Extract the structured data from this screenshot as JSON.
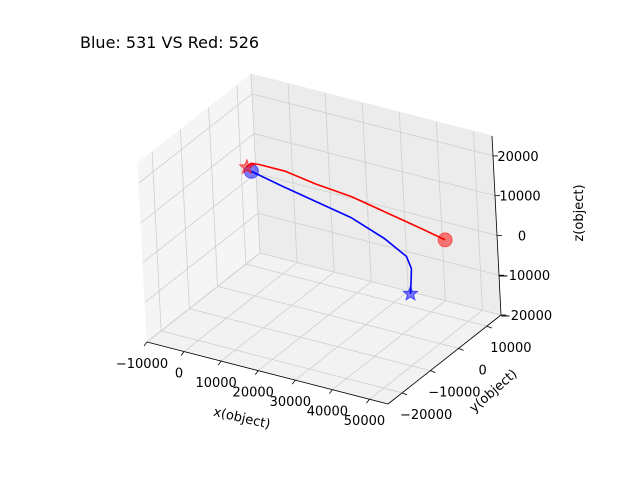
{
  "title": "Blue: 531 VS Red: 526",
  "chart_data": {
    "type": "line3d",
    "title": "Blue: 531 VS Red: 526",
    "xlabel": "x(object)",
    "ylabel": "y(object)",
    "zlabel": "z(object)",
    "x_ticks": [
      "−10000",
      "0",
      "10000",
      "20000",
      "30000",
      "40000",
      "50000"
    ],
    "y_ticks": [
      "−20000",
      "−10000",
      "0",
      "10000"
    ],
    "z_ticks": [
      "−20000",
      "−10000",
      "0",
      "10000",
      "20000"
    ],
    "xlim": [
      -10000,
      55000
    ],
    "ylim": [
      -25000,
      15000
    ],
    "zlim": [
      -20000,
      25000
    ],
    "grid": true,
    "series": [
      {
        "name": "Blue",
        "color": "#0000ff",
        "start_marker": "circle",
        "end_marker": "star",
        "points": [
          [
            -4000,
            6000,
            7000
          ],
          [
            5000,
            5000,
            6000
          ],
          [
            15000,
            4000,
            5000
          ],
          [
            25000,
            3000,
            4000
          ],
          [
            35000,
            1500,
            2000
          ],
          [
            42000,
            0,
            0
          ],
          [
            44000,
            -1000,
            -2000
          ],
          [
            44500,
            -2000,
            -5000
          ],
          [
            45000,
            -3000,
            -7000
          ]
        ]
      },
      {
        "name": "Red",
        "color": "#ff0000",
        "start_marker": "circle",
        "end_marker": "star",
        "points": [
          [
            52000,
            1000,
            6000
          ],
          [
            45000,
            1500,
            7000
          ],
          [
            35000,
            2500,
            8000
          ],
          [
            25000,
            3500,
            9000
          ],
          [
            15000,
            4000,
            9500
          ],
          [
            6000,
            5000,
            10000
          ],
          [
            -1000,
            5000,
            10000
          ],
          [
            -4000,
            6000,
            9000
          ],
          [
            -6000,
            7000,
            7000
          ]
        ]
      }
    ]
  }
}
